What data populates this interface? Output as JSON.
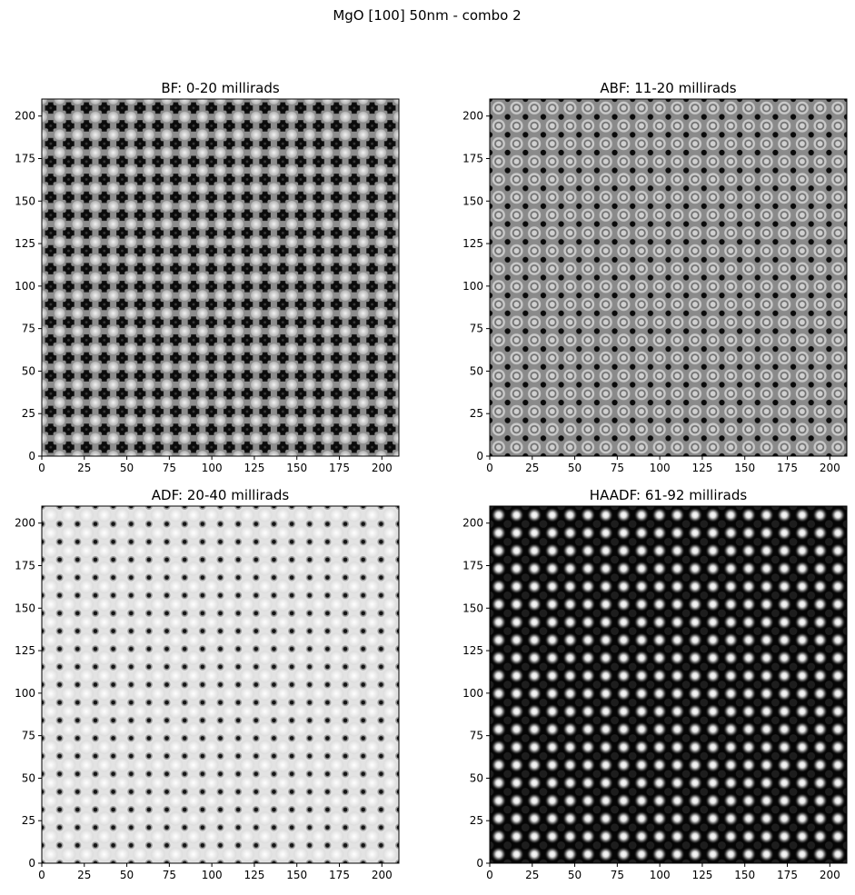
{
  "figure": {
    "suptitle": "MgO [100] 50nm - combo 2"
  },
  "chart_data": [
    {
      "type": "heatmap",
      "title": "BF: 0-20 millirads",
      "xlim": [
        0,
        210
      ],
      "ylim": [
        0,
        210
      ],
      "xticks": [
        0,
        25,
        50,
        75,
        100,
        125,
        150,
        175,
        200
      ],
      "yticks": [
        0,
        25,
        50,
        75,
        100,
        125,
        150,
        175,
        200
      ],
      "colormap": "gray",
      "lattice_period": 10.5,
      "pattern": "bright mesh with large dark cross-shaped spots at lattice sites"
    },
    {
      "type": "heatmap",
      "title": "ABF: 11-20 millirads",
      "xlim": [
        0,
        210
      ],
      "ylim": [
        0,
        210
      ],
      "xticks": [
        0,
        25,
        50,
        75,
        100,
        125,
        150,
        175,
        200
      ],
      "yticks": [
        0,
        25,
        50,
        75,
        100,
        125,
        150,
        175,
        200
      ],
      "colormap": "gray",
      "lattice_period": 10.5,
      "pattern": "gray background with small dark spots and light rings"
    },
    {
      "type": "heatmap",
      "title": "ADF: 20-40 millirads",
      "xlim": [
        0,
        210
      ],
      "ylim": [
        0,
        210
      ],
      "xticks": [
        0,
        25,
        50,
        75,
        100,
        125,
        150,
        175,
        200
      ],
      "yticks": [
        0,
        25,
        50,
        75,
        100,
        125,
        150,
        175,
        200
      ],
      "colormap": "gray",
      "lattice_period": 10.5,
      "pattern": "bright background with small dark spots"
    },
    {
      "type": "heatmap",
      "title": "HAADF: 61-92 millirads",
      "xlim": [
        0,
        210
      ],
      "ylim": [
        0,
        210
      ],
      "xticks": [
        0,
        25,
        50,
        75,
        100,
        125,
        150,
        175,
        200
      ],
      "yticks": [
        0,
        25,
        50,
        75,
        100,
        125,
        150,
        175,
        200
      ],
      "colormap": "gray",
      "lattice_period": 10.5,
      "pattern": "black background with bright spots"
    }
  ]
}
